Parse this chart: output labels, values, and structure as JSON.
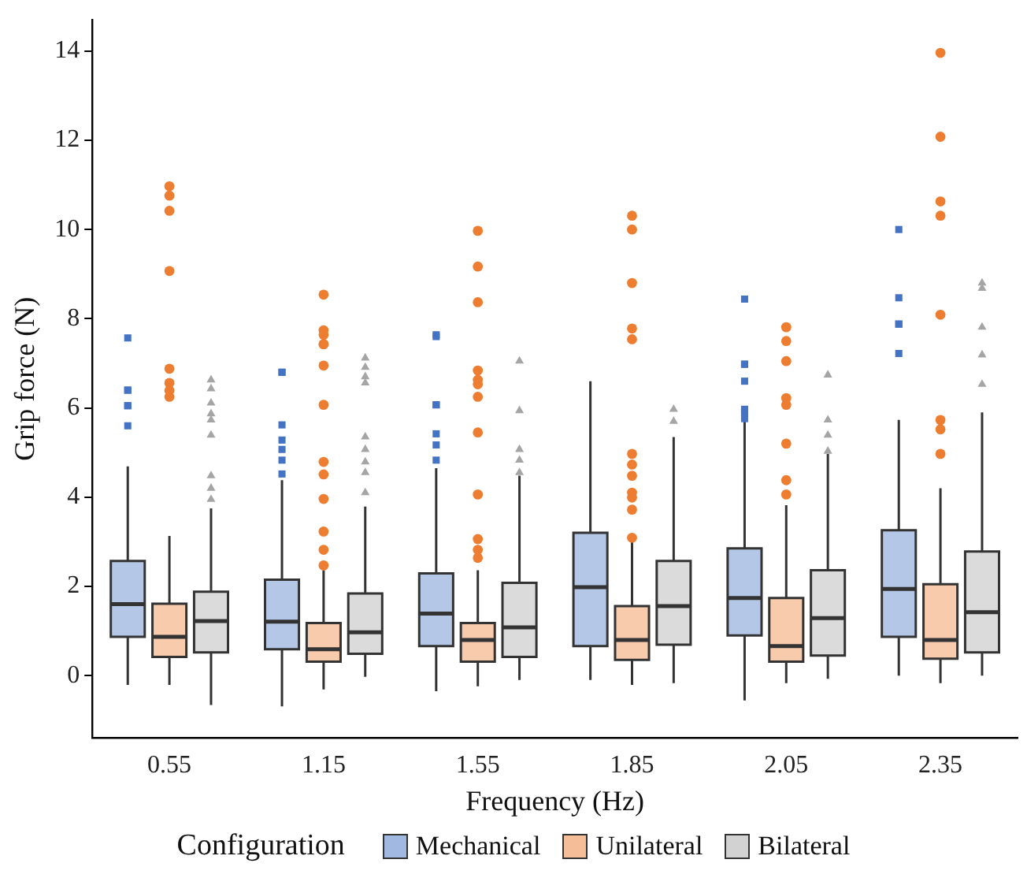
{
  "chart_data": {
    "type": "box",
    "xlabel": "Frequency (Hz)",
    "ylabel": "Grip force (N)",
    "legend_title": "Configuration",
    "legend": "bottom",
    "grid": false,
    "categories": [
      "0.55",
      "1.15",
      "1.55",
      "1.85",
      "2.05",
      "2.35"
    ],
    "ylim": [
      -1.4,
      14.7
    ],
    "yticks": [
      0,
      2,
      4,
      6,
      8,
      10,
      12,
      14
    ],
    "series": [
      {
        "name": "Mechanical",
        "color": "#4472c4",
        "marker": "square",
        "boxes": [
          {
            "low": -0.21,
            "q1": 0.87,
            "median": 1.6,
            "q3": 2.57,
            "high": 4.69,
            "outliers": [
              7.57,
              6.4,
              6.4,
              6.05,
              6.05,
              5.6
            ]
          },
          {
            "low": -0.69,
            "q1": 0.59,
            "median": 1.21,
            "q3": 2.15,
            "high": 4.38,
            "outliers": [
              6.8,
              6.8,
              5.62,
              5.28,
              5.07,
              4.83,
              4.52
            ]
          },
          {
            "low": -0.35,
            "q1": 0.66,
            "median": 1.39,
            "q3": 2.29,
            "high": 4.65,
            "outliers": [
              7.64,
              7.6,
              6.07,
              6.07,
              5.42,
              5.17,
              4.83
            ]
          },
          {
            "low": -0.1,
            "q1": 0.66,
            "median": 1.98,
            "q3": 3.2,
            "high": 6.6
          },
          {
            "low": -0.56,
            "q1": 0.9,
            "median": 1.74,
            "q3": 2.85,
            "high": 5.7,
            "outliers": [
              8.44,
              6.98,
              6.98,
              6.6,
              5.97,
              5.9,
              5.76
            ]
          },
          {
            "low": 0,
            "q1": 0.87,
            "median": 1.94,
            "q3": 3.26,
            "high": 5.73,
            "outliers": [
              10,
              8.47,
              7.88,
              7.88,
              7.22
            ]
          }
        ]
      },
      {
        "name": "Unilateral",
        "color": "#ed7d31",
        "marker": "circle",
        "boxes": [
          {
            "low": -0.21,
            "q1": 0.42,
            "median": 0.87,
            "q3": 1.61,
            "high": 3.13,
            "outliers": [
              10.97,
              10.76,
              10.42,
              9.07,
              6.88,
              6.56,
              6.39,
              6.25
            ]
          },
          {
            "low": -0.31,
            "q1": 0.31,
            "median": 0.59,
            "q3": 1.18,
            "high": 2.36,
            "outliers": [
              8.54,
              7.74,
              7.64,
              7.43,
              7.43,
              6.95,
              6.07,
              4.79,
              4.51,
              3.96,
              3.23,
              2.82,
              2.47
            ]
          },
          {
            "low": -0.24,
            "q1": 0.31,
            "median": 0.8,
            "q3": 1.18,
            "high": 2.36,
            "outliers": [
              9.97,
              9.17,
              8.37,
              6.84,
              6.63,
              6.53,
              6.25,
              5.45,
              4.06,
              3.06,
              2.82,
              2.64
            ]
          },
          {
            "low": -0.21,
            "q1": 0.35,
            "median": 0.8,
            "q3": 1.56,
            "high": 3.06,
            "outliers": [
              10.31,
              10,
              8.8,
              7.78,
              7.54,
              4.97,
              4.73,
              4.48,
              4.1,
              3.99,
              3.72,
              3.09
            ]
          },
          {
            "low": -0.17,
            "q1": 0.31,
            "median": 0.66,
            "q3": 1.74,
            "high": 3.82,
            "outliers": [
              7.81,
              7.5,
              7.05,
              6.22,
              6.07,
              5.2,
              4.38,
              4.06
            ]
          },
          {
            "low": -0.17,
            "q1": 0.38,
            "median": 0.8,
            "q3": 2.05,
            "high": 4.2,
            "outliers": [
              13.96,
              12.08,
              10.63,
              10.31,
              8.09,
              5.73,
              5.52,
              4.97
            ]
          }
        ]
      },
      {
        "name": "Bilateral",
        "color": "#a5a5a5",
        "marker": "triangle",
        "boxes": [
          {
            "low": -0.66,
            "q1": 0.52,
            "median": 1.22,
            "q3": 1.88,
            "high": 3.75,
            "outliers": [
              6.63,
              6.43,
              6.11,
              5.87,
              5.73,
              5.39,
              4.48,
              4.2,
              3.95
            ]
          },
          {
            "low": -0.03,
            "q1": 0.49,
            "median": 0.97,
            "q3": 1.84,
            "high": 3.79,
            "outliers": [
              7.12,
              6.91,
              6.7,
              6.56,
              5.35,
              5.07,
              4.79,
              4.55,
              4.1
            ]
          },
          {
            "low": -0.1,
            "q1": 0.42,
            "median": 1.08,
            "q3": 2.08,
            "high": 4.48,
            "outliers": [
              7.05,
              5.94,
              5.07,
              4.83,
              4.55
            ]
          },
          {
            "low": -0.17,
            "q1": 0.69,
            "median": 1.56,
            "q3": 2.57,
            "high": 5.35,
            "outliers": [
              5.97,
              5.7
            ]
          },
          {
            "low": -0.07,
            "q1": 0.45,
            "median": 1.29,
            "q3": 2.36,
            "high": 4.97,
            "outliers": [
              6.74,
              5.73,
              5.39,
              5.03
            ]
          },
          {
            "low": 0,
            "q1": 0.52,
            "median": 1.42,
            "q3": 2.78,
            "high": 5.9,
            "outliers": [
              8.8,
              8.68,
              7.81,
              7.19,
              6.53
            ]
          }
        ]
      }
    ]
  }
}
